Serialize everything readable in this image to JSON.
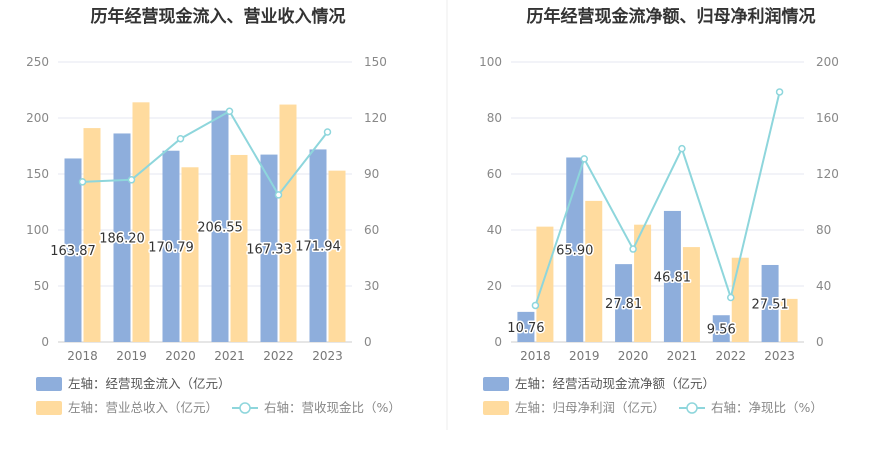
{
  "chart_data": [
    {
      "type": "bar+line",
      "title": "历年经营现金流入、营业收入情况",
      "categories": [
        "2018",
        "2019",
        "2020",
        "2021",
        "2022",
        "2023"
      ],
      "left_axis": {
        "ticks": [
          "0",
          "50",
          "100",
          "150",
          "200",
          "250"
        ],
        "ylim": [
          0,
          250
        ]
      },
      "right_axis": {
        "ticks": [
          "0",
          "30",
          "60",
          "90",
          "120",
          "150"
        ],
        "ylim": [
          0,
          150
        ]
      },
      "series": [
        {
          "name": "左轴：经营现金流入（亿元）",
          "type": "bar",
          "axis": "left",
          "color": "#8eaedc",
          "values": [
            163.87,
            186.2,
            170.79,
            206.55,
            167.33,
            171.94
          ],
          "labels": [
            "163.87",
            "186.20",
            "170.79",
            "206.55",
            "167.33",
            "171.94"
          ]
        },
        {
          "name": "左轴：营业总收入（亿元）",
          "type": "bar",
          "axis": "left",
          "color": "#ffdb9e",
          "values": [
            191,
            214,
            156,
            167,
            212,
            153
          ]
        },
        {
          "name": "右轴：营收现金比（%）",
          "type": "line",
          "axis": "right",
          "color": "#8ed6dc",
          "values": [
            85.8,
            86.9,
            108.9,
            123.6,
            78.8,
            112.5
          ]
        }
      ],
      "grid": true,
      "legend": "bottom"
    },
    {
      "type": "bar+line",
      "title": "历年经营现金流净额、归母净利润情况",
      "categories": [
        "2018",
        "2019",
        "2020",
        "2021",
        "2022",
        "2023"
      ],
      "left_axis": {
        "ticks": [
          "0",
          "20",
          "40",
          "60",
          "80",
          "100"
        ],
        "ylim": [
          0,
          100
        ]
      },
      "right_axis": {
        "ticks": [
          "0",
          "40",
          "80",
          "120",
          "160",
          "200"
        ],
        "ylim": [
          0,
          200
        ]
      },
      "series": [
        {
          "name": "左轴：经营活动现金流净额（亿元）",
          "type": "bar",
          "axis": "left",
          "color": "#8eaedc",
          "values": [
            10.76,
            65.9,
            27.81,
            46.81,
            9.56,
            27.51
          ],
          "labels": [
            "10.76",
            "65.90",
            "27.81",
            "46.81",
            "9.56",
            "27.51"
          ]
        },
        {
          "name": "左轴：归母净利润（亿元）",
          "type": "bar",
          "axis": "left",
          "color": "#ffdb9e",
          "values": [
            41.2,
            50.4,
            41.9,
            33.9,
            30.1,
            15.4
          ]
        },
        {
          "name": "右轴：净现比（%）",
          "type": "line",
          "axis": "right",
          "color": "#8ed6dc",
          "values": [
            26.1,
            130.8,
            66.4,
            138.1,
            31.8,
            178.6
          ]
        }
      ],
      "grid": true,
      "legend": "bottom"
    }
  ]
}
